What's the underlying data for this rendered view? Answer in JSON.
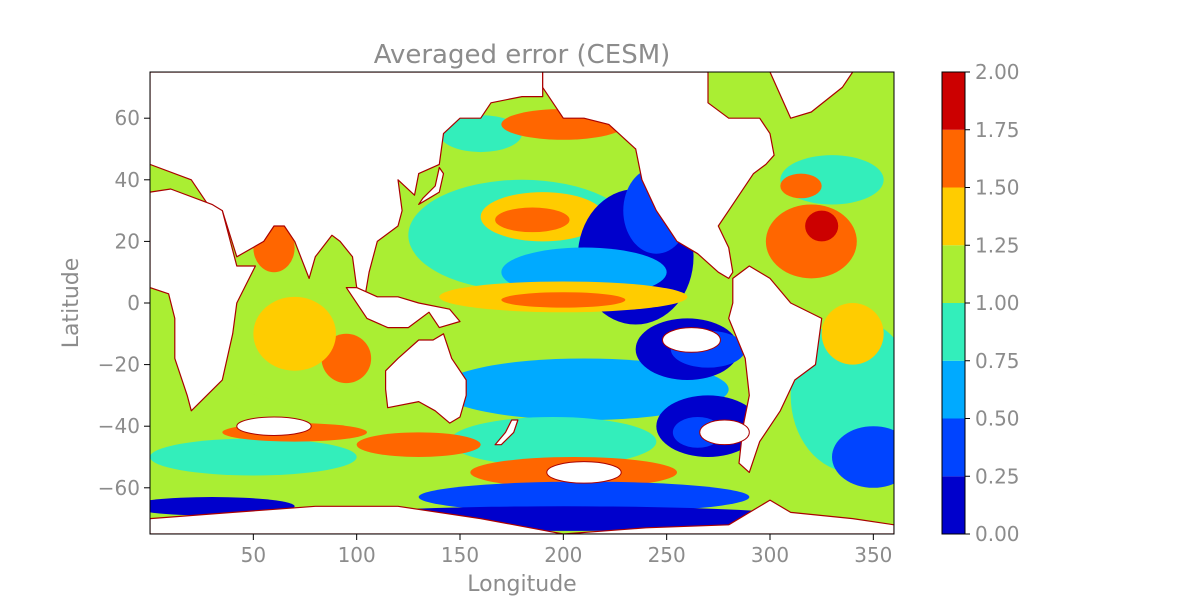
{
  "chart_data": {
    "type": "heatmap",
    "title": "Averaged error (CESM)",
    "xlabel": "Longitude",
    "ylabel": "Latitude",
    "xlim": [
      0,
      360
    ],
    "ylim": [
      -75,
      75
    ],
    "xticks": [
      50,
      100,
      150,
      200,
      250,
      300,
      350
    ],
    "yticks": [
      -60,
      -40,
      -20,
      0,
      20,
      40,
      60
    ],
    "colorbar": {
      "levels": [
        0.0,
        0.25,
        0.5,
        0.75,
        1.0,
        1.25,
        1.5,
        1.75,
        2.0
      ],
      "tick_labels": [
        "0.00",
        "0.25",
        "0.50",
        "0.75",
        "1.00",
        "1.25",
        "1.50",
        "1.75",
        "2.00"
      ],
      "colors": [
        "#0000cc",
        "#0044ff",
        "#00aaff",
        "#33eebb",
        "#aaee33",
        "#ffcc00",
        "#ff6600",
        "#cc0000"
      ],
      "colormap": "jet"
    },
    "land_color": "#ffffff",
    "coastline_color": "#aa0000",
    "grid": false
  }
}
